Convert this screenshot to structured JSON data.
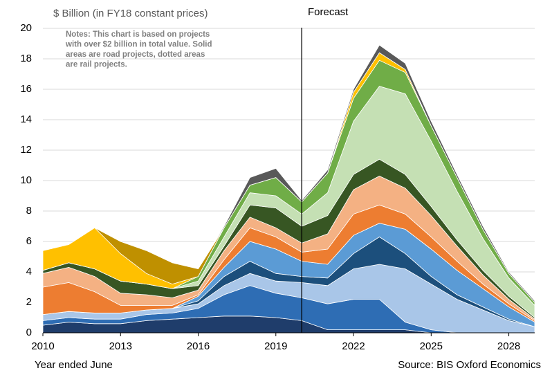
{
  "chart_data": {
    "type": "stacked_area",
    "title": "$ Billion (in FY18 constant prices)",
    "notes": [
      "Notes: This chart is based on projects",
      "with over $2 billion in total value. Solid",
      "areas are road projects, dotted areas",
      "are rail projects."
    ],
    "forecast_label": "Forecast",
    "forecast_x": 2020,
    "xlabel": "Year ended June",
    "source": "Source: BIS Oxford Economics",
    "x": [
      2010,
      2011,
      2012,
      2013,
      2014,
      2015,
      2016,
      2017,
      2018,
      2019,
      2020,
      2021,
      2022,
      2023,
      2024,
      2025,
      2026,
      2027,
      2028,
      2029
    ],
    "xlim": [
      2010,
      2029
    ],
    "xticks": [
      2010,
      2013,
      2016,
      2019,
      2022,
      2025,
      2028
    ],
    "ylim": [
      0,
      20
    ],
    "yticks": [
      0,
      2,
      4,
      6,
      8,
      10,
      12,
      14,
      16,
      18,
      20
    ],
    "grid": true,
    "series": [
      {
        "color": "#1f3d6b",
        "values": [
          0.5,
          0.7,
          0.6,
          0.6,
          0.8,
          0.9,
          1.0,
          1.1,
          1.1,
          1.0,
          0.8,
          0.2,
          0.2,
          0.2,
          0.2,
          0,
          0,
          0,
          0,
          0
        ]
      },
      {
        "color": "#2e6db4",
        "values": [
          0.3,
          0.3,
          0.3,
          0.3,
          0.4,
          0.4,
          0.6,
          1.4,
          2.0,
          1.6,
          1.5,
          1.7,
          2.0,
          2.0,
          0.5,
          0.2,
          0,
          0,
          0,
          0
        ]
      },
      {
        "color": "#a9c6e8",
        "values": [
          0.4,
          0.4,
          0.4,
          0.4,
          0.3,
          0.3,
          0.3,
          0.6,
          0.8,
          0.8,
          1.0,
          1.2,
          2.0,
          2.3,
          3.5,
          3.0,
          2.2,
          1.5,
          0.8,
          0.4
        ]
      },
      {
        "color": "#1c4f7c",
        "values": [
          0,
          0,
          0,
          0,
          0,
          0,
          0.2,
          0.6,
          0.8,
          0.5,
          0.4,
          0.5,
          1.0,
          1.8,
          1.0,
          0.5,
          0.3,
          0.2,
          0.1,
          0
        ]
      },
      {
        "color": "#5b9bd5",
        "values": [
          0,
          0,
          0,
          0,
          0,
          0,
          0.3,
          0.6,
          1.3,
          1.6,
          1.0,
          0.9,
          1.2,
          0.9,
          1.6,
          1.8,
          1.6,
          1.2,
          0.8,
          0.3
        ]
      },
      {
        "color": "#ed7d31",
        "values": [
          1.8,
          1.9,
          1.4,
          0.5,
          0.3,
          0.2,
          0.1,
          0.5,
          0.9,
          0.8,
          0.6,
          1.0,
          1.4,
          1.2,
          1.0,
          0.8,
          0.6,
          0.3,
          0.2,
          0.1
        ]
      },
      {
        "color": "#f4b183",
        "values": [
          0.9,
          1.0,
          1.0,
          0.8,
          0.7,
          0.5,
          0.3,
          0.6,
          0.7,
          0.6,
          0.6,
          1.0,
          1.6,
          1.9,
          1.7,
          1.4,
          1.0,
          0.6,
          0.3,
          0.1
        ]
      },
      {
        "color": "#375623",
        "values": [
          0.2,
          0.3,
          0.5,
          0.8,
          0.7,
          0.6,
          0.3,
          0.3,
          0.8,
          1.3,
          1.1,
          1.2,
          1.0,
          1.1,
          0.9,
          0.6,
          0.4,
          0.3,
          0.2,
          0.1
        ]
      },
      {
        "color": "#c5e0b4",
        "values": [
          0,
          0,
          0,
          0,
          0,
          0,
          0.3,
          0.6,
          0.8,
          0.8,
          0.8,
          1.5,
          3.5,
          4.8,
          5.3,
          4.3,
          3.2,
          2.1,
          1.2,
          0.8
        ]
      },
      {
        "color": "#70ad47",
        "values": [
          0,
          0,
          0,
          0,
          0,
          0,
          0.3,
          0.6,
          0.5,
          1.2,
          0.8,
          1.3,
          1.5,
          1.7,
          1.4,
          1.0,
          0.9,
          0.6,
          0.3,
          0.2
        ]
      },
      {
        "color": "#ffc000",
        "values": [
          1.3,
          1.2,
          2.7,
          1.8,
          0.7,
          0.3,
          0,
          0,
          0,
          0,
          0,
          0,
          0.4,
          0.5,
          0.2,
          0,
          0,
          0,
          0,
          0
        ]
      },
      {
        "color": "#bf9000",
        "values": [
          0,
          0,
          0,
          0.8,
          1.5,
          1.4,
          0.5,
          0,
          0,
          0,
          0,
          0,
          0,
          0,
          0,
          0,
          0,
          0,
          0,
          0
        ]
      },
      {
        "color": "#595959",
        "values": [
          0,
          0,
          0,
          0,
          0,
          0,
          0,
          0.1,
          0.5,
          0.6,
          0.1,
          0.2,
          0.2,
          0.5,
          0.4,
          0.3,
          0.2,
          0.2,
          0.1,
          0.1
        ]
      }
    ]
  }
}
